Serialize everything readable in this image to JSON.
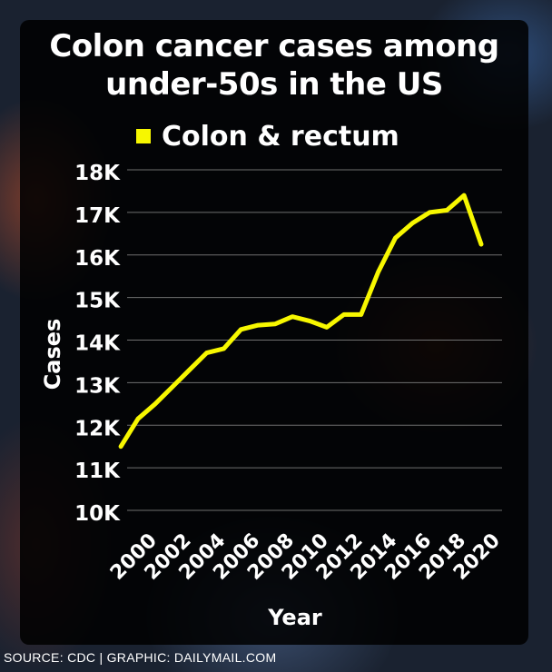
{
  "chart_data": {
    "type": "line",
    "title": "Colon cancer cases among under-50s in the US",
    "xlabel": "Year",
    "ylabel": "Cases",
    "ylim": [
      10000,
      18000
    ],
    "yticks": [
      10000,
      11000,
      12000,
      13000,
      14000,
      15000,
      16000,
      17000,
      18000
    ],
    "ytick_labels": [
      "10K",
      "11K",
      "12K",
      "13K",
      "14K",
      "15K",
      "16K",
      "17K",
      "18K"
    ],
    "xtick_labels": [
      "2000",
      "2002",
      "2004",
      "2006",
      "2008",
      "2010",
      "2012",
      "2014",
      "2016",
      "2018",
      "2020"
    ],
    "xlim": [
      2000,
      2020
    ],
    "grid": true,
    "legend_position": "top-left",
    "series": [
      {
        "name": "Colon & rectum",
        "color": "#f7f700",
        "x": [
          1999,
          2000,
          2001,
          2002,
          2003,
          2004,
          2005,
          2006,
          2007,
          2008,
          2009,
          2010,
          2011,
          2012,
          2013,
          2014,
          2015,
          2016,
          2017,
          2018,
          2019,
          2020
        ],
        "y": [
          11500,
          12150,
          12500,
          12900,
          13300,
          13700,
          13800,
          14250,
          14350,
          14380,
          14550,
          14450,
          14300,
          14600,
          14600,
          15600,
          16400,
          16750,
          17000,
          17050,
          17400,
          16250
        ]
      }
    ]
  },
  "source_text": "SOURCE: CDC  |  GRAPHIC: DAILYMAIL.COM"
}
